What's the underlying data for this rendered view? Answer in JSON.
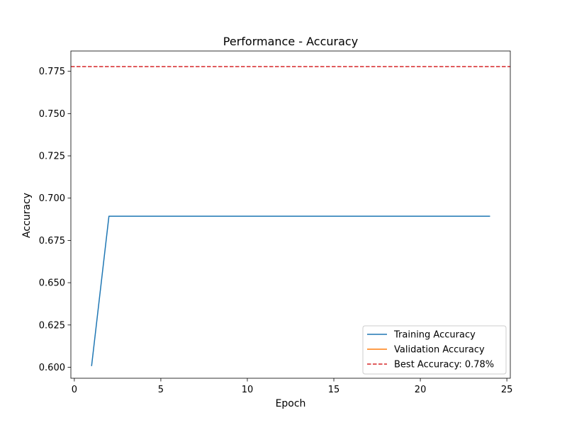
{
  "chart_data": {
    "type": "line",
    "title": "Performance - Accuracy",
    "xlabel": "Epoch",
    "ylabel": "Accuracy",
    "xlim": [
      -0.2,
      25.2
    ],
    "ylim": [
      0.5935,
      0.787
    ],
    "x_ticks": [
      0,
      5,
      10,
      15,
      20,
      25
    ],
    "x_tick_labels": [
      "0",
      "5",
      "10",
      "15",
      "20",
      "25"
    ],
    "y_ticks": [
      0.6,
      0.625,
      0.65,
      0.675,
      0.7,
      0.725,
      0.75,
      0.775
    ],
    "y_tick_labels": [
      "0.600",
      "0.625",
      "0.650",
      "0.675",
      "0.700",
      "0.725",
      "0.750",
      "0.775"
    ],
    "grid": false,
    "legend_position": "bottom-right",
    "series": [
      {
        "name": "Training Accuracy",
        "color": "#1f77b4",
        "style": "solid",
        "x": [
          1,
          2,
          3,
          4,
          5,
          6,
          7,
          8,
          9,
          10,
          11,
          12,
          13,
          14,
          15,
          16,
          17,
          18,
          19,
          20,
          21,
          22,
          23,
          24
        ],
        "y": [
          0.601,
          0.6893,
          0.6893,
          0.6893,
          0.6893,
          0.6893,
          0.6893,
          0.6893,
          0.6893,
          0.6893,
          0.6893,
          0.6893,
          0.6893,
          0.6893,
          0.6893,
          0.6893,
          0.6893,
          0.6893,
          0.6893,
          0.6893,
          0.6893,
          0.6893,
          0.6893,
          0.6893
        ]
      },
      {
        "name": "Validation Accuracy",
        "color": "#ff7f0e",
        "style": "solid",
        "x": [],
        "y": []
      }
    ],
    "reference_lines": [
      {
        "name": "Best Accuracy: 0.78%",
        "orientation": "horizontal",
        "value": 0.7778,
        "color": "#d62728",
        "style": "dashed"
      }
    ]
  }
}
